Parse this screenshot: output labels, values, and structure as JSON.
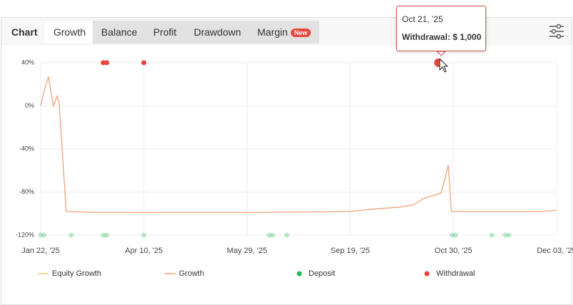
{
  "tabs": [
    "Chart",
    "Growth",
    "Balance",
    "Profit",
    "Drawdown",
    "Margin"
  ],
  "badge": "New",
  "tooltip": {
    "date": "Oct 21, '25",
    "label": "Withdrawal: $ 1,000"
  },
  "chart_data": {
    "type": "line",
    "xlim": [
      0,
      5
    ],
    "xticks": [
      {
        "value": 0,
        "label": "Jan 22, '25"
      },
      {
        "value": 1,
        "label": "Apr 10, '25"
      },
      {
        "value": 2,
        "label": "May 29, '25"
      },
      {
        "value": 3,
        "label": "Sep 19, '25"
      },
      {
        "value": 4,
        "label": "Oct 30, '25"
      },
      {
        "value": 5,
        "label": "Dec 03, '25"
      }
    ],
    "ylim": [
      -120,
      40
    ],
    "yticks": [
      {
        "value": 40,
        "label": "40%"
      },
      {
        "value": 0,
        "label": "0%"
      },
      {
        "value": -40,
        "label": "-40%"
      },
      {
        "value": -80,
        "label": "-80%"
      },
      {
        "value": -120,
        "label": "-120%"
      }
    ],
    "grid": true,
    "series": [
      {
        "name": "Equity Growth",
        "color": "#f5c76a"
      },
      {
        "name": "Growth",
        "color": "#f0a27a",
        "kind": "line",
        "x": [
          0,
          0.034,
          0.076,
          0.103,
          0.124,
          0.159,
          0.179,
          0.248,
          0.552,
          1,
          2,
          3,
          3.2,
          3.47,
          3.61,
          3.71,
          3.88,
          3.92,
          3.95,
          3.98,
          4.3,
          4.85,
          5
        ],
        "values": [
          0,
          14,
          27,
          12,
          0,
          9,
          3,
          -98,
          -99,
          -99,
          -99,
          -98,
          -96,
          -94,
          -92,
          -86,
          -81,
          -67,
          -55,
          -98,
          -98,
          -98,
          -97
        ]
      },
      {
        "name": "Deposit",
        "color": "#1db954",
        "kind": "dots",
        "x": [
          0,
          0.034,
          0.296,
          0.607,
          0.641,
          1,
          2.214,
          2.248,
          2.386,
          3.986,
          4.021,
          4.372,
          4.503,
          4.538
        ],
        "values": [
          -120,
          -120,
          -120,
          -120,
          -120,
          -120,
          -120,
          -120,
          -120,
          -120,
          -120,
          -120,
          -120,
          -120
        ]
      },
      {
        "name": "Withdrawal",
        "color": "#e8453c",
        "kind": "dots",
        "x": [
          0.607,
          0.641,
          1,
          3.855
        ],
        "values": [
          40,
          40,
          40,
          40
        ]
      }
    ]
  }
}
